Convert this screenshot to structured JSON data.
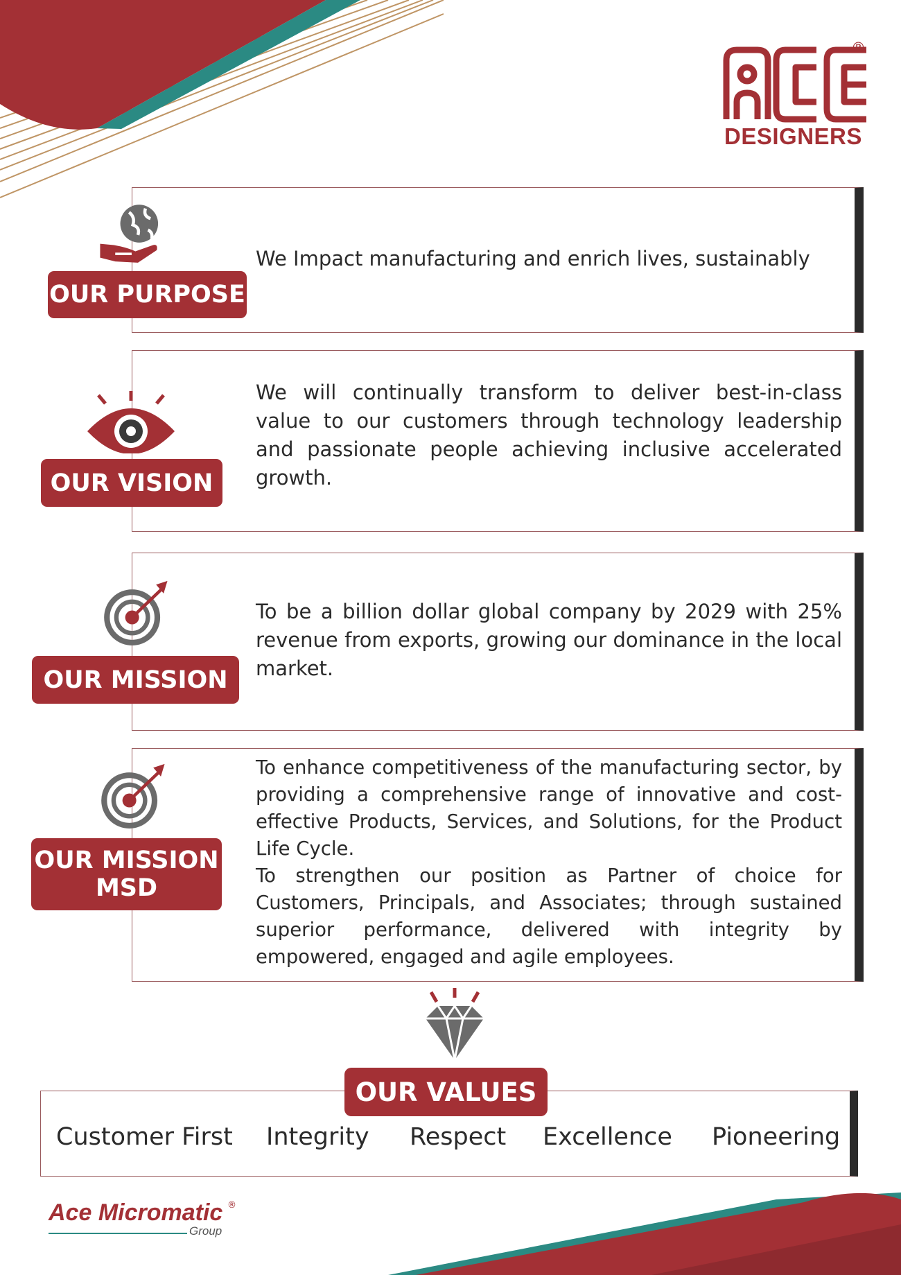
{
  "logo": {
    "text": "DESIGNERS",
    "reg": "®"
  },
  "sections": [
    {
      "label": "OUR PURPOSE",
      "icon": "globe-in-hand-icon",
      "text": "We Impact manufacturing and enrich lives, sustainably"
    },
    {
      "label": "OUR VISION",
      "icon": "eye-icon",
      "text": "We will continually transform to deliver best-in-class value to our customers through technology leadership and passionate people achieving inclusive accelerated growth."
    },
    {
      "label": "OUR MISSION",
      "icon": "target-arrow-icon",
      "text": "To be a billion dollar global company by 2029 with 25% revenue from exports, growing our dominance in the local market."
    },
    {
      "label_line1": "OUR MISSION",
      "label_line2": "MSD",
      "icon": "target-arrow-icon",
      "text_p1": "To enhance competitiveness of the manufacturing sector, by providing a comprehensive range of innovative and cost- effective Products, Services, and Solutions, for the Product Life Cycle.",
      "text_p2": "To strengthen our position as Partner of choice for Customers, Principals, and Associates; through sustained superior performance, delivered with integrity by empowered, engaged and agile employees."
    }
  ],
  "values": {
    "label": "OUR VALUES",
    "icon": "diamond-icon",
    "items": [
      "Customer First",
      "Integrity",
      "Respect",
      "Excellence",
      "Pioneering"
    ]
  },
  "footer": {
    "brand": "Ace Micromatic",
    "reg": "®",
    "group": "Group"
  },
  "colors": {
    "accent": "#a33035",
    "dark": "#2b2b2b",
    "teal": "#2b8a83",
    "gold": "#b98a55",
    "icon_gray": "#6b6b6b"
  }
}
